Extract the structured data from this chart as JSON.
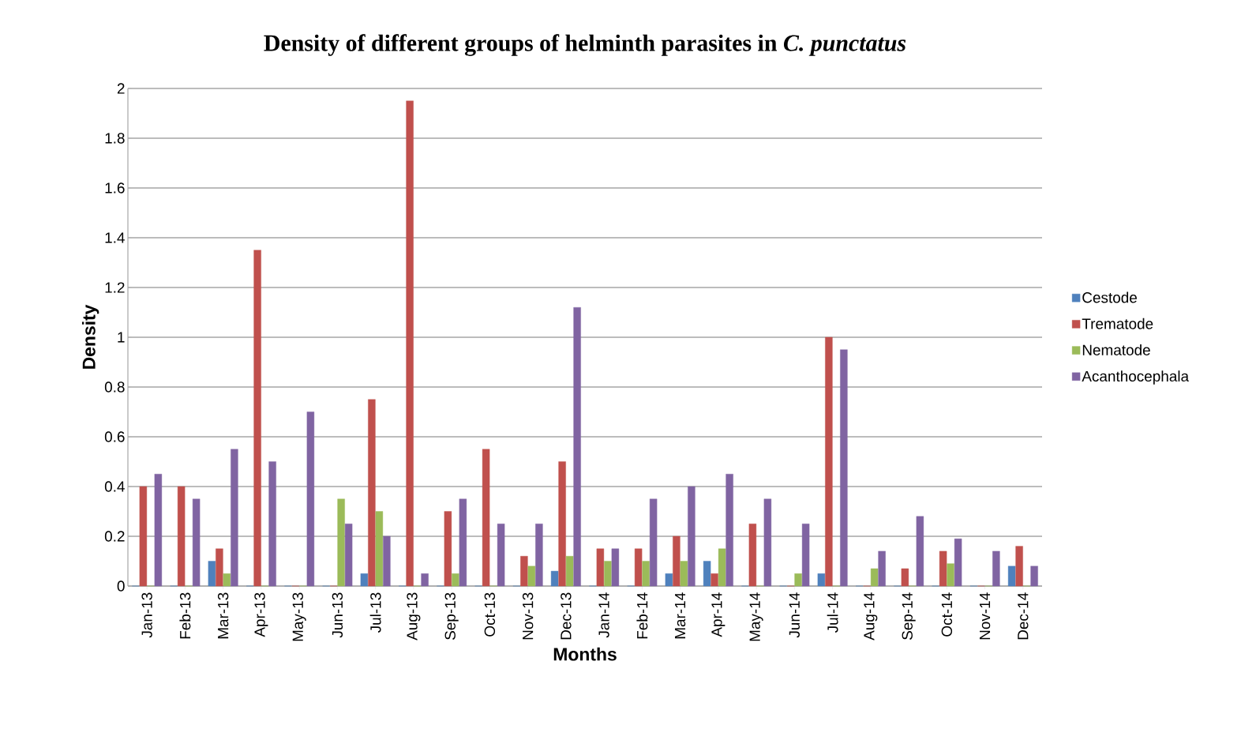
{
  "chart_data": {
    "type": "bar",
    "title": "Density of different groups of helminth parasites in *C. punctatus*",
    "xlabel": "Months",
    "ylabel": "Density",
    "categories": [
      "Jan-13",
      "Feb-13",
      "Mar-13",
      "Apr-13",
      "May-13",
      "Jun-13",
      "Jul-13",
      "Aug-13",
      "Sep-13",
      "Oct-13",
      "Nov-13",
      "Dec-13",
      "Jan-14",
      "Feb-14",
      "Mar-14",
      "Apr-14",
      "May-14",
      "Jun-14",
      "Jul-14",
      "Aug-14",
      "Sep-14",
      "Oct-14",
      "Nov-14",
      "Dec-14"
    ],
    "series": [
      {
        "name": "Cestode",
        "color": "#4f81bd",
        "values": [
          0,
          0,
          0.1,
          0,
          0,
          0,
          0.05,
          0,
          0,
          0,
          0,
          0.06,
          0,
          0,
          0.05,
          0.1,
          0,
          0,
          0.05,
          0,
          0,
          0,
          0,
          0.08
        ]
      },
      {
        "name": "Trematode",
        "color": "#c0504d",
        "values": [
          0.4,
          0.4,
          0.15,
          1.35,
          0,
          0,
          0.75,
          1.95,
          0.3,
          0.55,
          0.12,
          0.5,
          0.15,
          0.15,
          0.2,
          0.05,
          0.25,
          0,
          1.0,
          0,
          0.07,
          0.14,
          0,
          0.16
        ]
      },
      {
        "name": "Nematode",
        "color": "#9bbb59",
        "values": [
          0,
          0,
          0.05,
          0,
          0,
          0.35,
          0.3,
          0,
          0.05,
          0,
          0.08,
          0.12,
          0.1,
          0.1,
          0.1,
          0.15,
          0,
          0.05,
          0,
          0.07,
          0,
          0.09,
          0,
          0
        ]
      },
      {
        "name": "Acanthocephala",
        "color": "#8064a2",
        "values": [
          0.45,
          0.35,
          0.55,
          0.5,
          0.7,
          0.25,
          0.2,
          0.05,
          0.35,
          0.25,
          0.25,
          1.12,
          0.15,
          0.35,
          0.4,
          0.45,
          0.35,
          0.25,
          0.95,
          0.14,
          0.28,
          0.19,
          0.14,
          0.08
        ]
      }
    ],
    "ylim": [
      0,
      2
    ],
    "yticks": [
      0,
      0.2,
      0.4,
      0.6,
      0.8,
      1,
      1.2,
      1.4,
      1.6,
      1.8,
      2
    ],
    "grid": "y",
    "legend": "right"
  }
}
